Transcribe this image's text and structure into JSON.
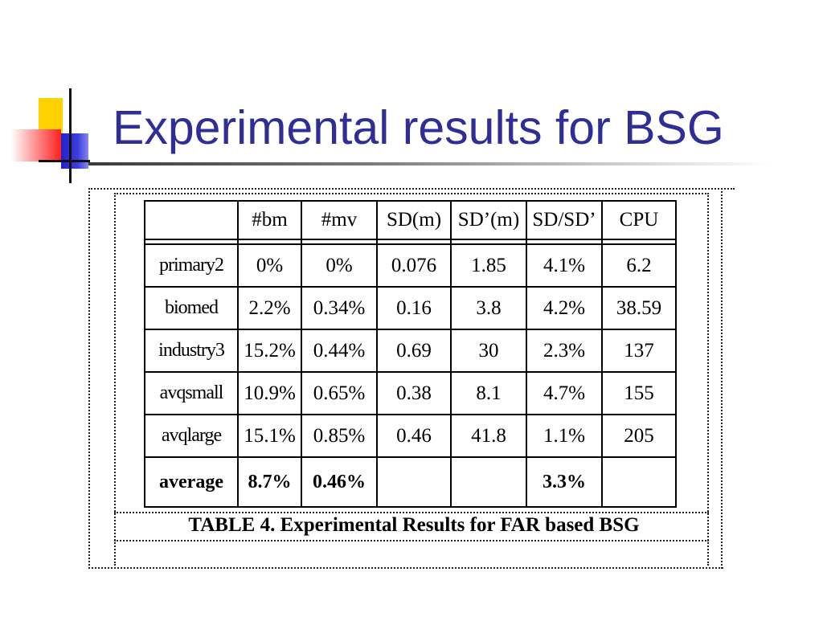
{
  "slide": {
    "title": "Experimental results for BSG"
  },
  "table": {
    "headers": [
      "",
      "#bm",
      "#mv",
      "SD(m)",
      "SD’(m)",
      "SD/SD’",
      "CPU"
    ],
    "rows": [
      [
        "primary2",
        "0%",
        "0%",
        "0.076",
        "1.85",
        "4.1%",
        "6.2"
      ],
      [
        "biomed",
        "2.2%",
        "0.34%",
        "0.16",
        "3.8",
        "4.2%",
        "38.59"
      ],
      [
        "industry3",
        "15.2%",
        "0.44%",
        "0.69",
        "30",
        "2.3%",
        "137"
      ],
      [
        "avqsmall",
        "10.9%",
        "0.65%",
        "0.38",
        "8.1",
        "4.7%",
        "155"
      ],
      [
        "avqlarge",
        "15.1%",
        "0.85%",
        "0.46",
        "41.8",
        "1.1%",
        "205"
      ]
    ],
    "average": [
      "average",
      "8.7%",
      "0.46%",
      "",
      "",
      "3.3%",
      ""
    ],
    "caption": "TABLE 4. Experimental Results for FAR based BSG"
  }
}
